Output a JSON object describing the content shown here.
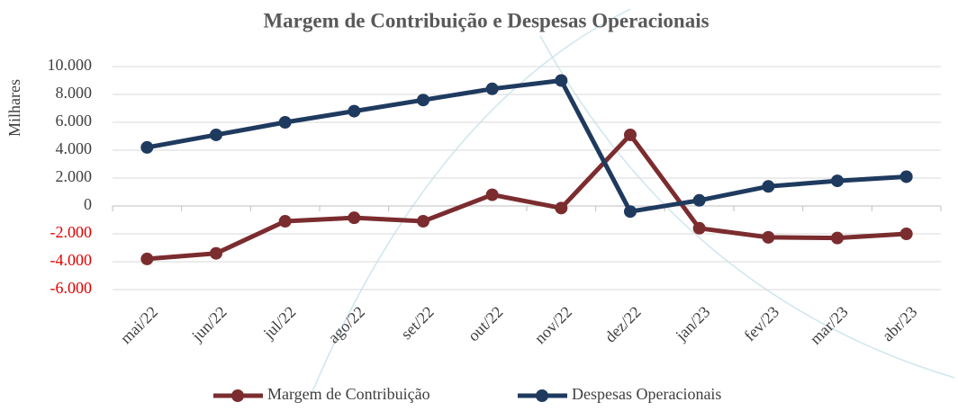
{
  "chart_data": {
    "type": "line",
    "title": "Margem de Contribuição e Despesas Operacionais",
    "y_label": "Milhares",
    "categories": [
      "mai/22",
      "jun/22",
      "jul/22",
      "ago/22",
      "set/22",
      "out/22",
      "nov/22",
      "dez/22",
      "jan/23",
      "fev/23",
      "mar/23",
      "abr/23"
    ],
    "series": [
      {
        "name": "Margem de Contribuição",
        "color": "#7b2c2f",
        "values": [
          -3800,
          -3400,
          -1100,
          -850,
          -1100,
          800,
          -150,
          5100,
          -1600,
          -2250,
          -2300,
          -2000
        ]
      },
      {
        "name": "Despesas Operacionais",
        "color": "#1f3a5f",
        "values": [
          4200,
          5100,
          6000,
          6800,
          7600,
          8400,
          9000,
          -400,
          400,
          1400,
          1800,
          2100
        ]
      }
    ],
    "ylim": [
      -6000,
      10000
    ],
    "yticks": [
      {
        "value": -6000,
        "label": "-6.000"
      },
      {
        "value": -4000,
        "label": "-4.000"
      },
      {
        "value": -2000,
        "label": "-2.000"
      },
      0,
      {
        "value": 2000,
        "label": "2.000"
      },
      {
        "value": 4000,
        "label": "4.000"
      },
      {
        "value": 6000,
        "label": "6.000"
      },
      {
        "value": 8000,
        "label": "8.000"
      },
      {
        "value": 10000,
        "label": "10.000"
      }
    ],
    "negative_tick_color": "#e00000",
    "grid": true,
    "legend": "bottom"
  }
}
